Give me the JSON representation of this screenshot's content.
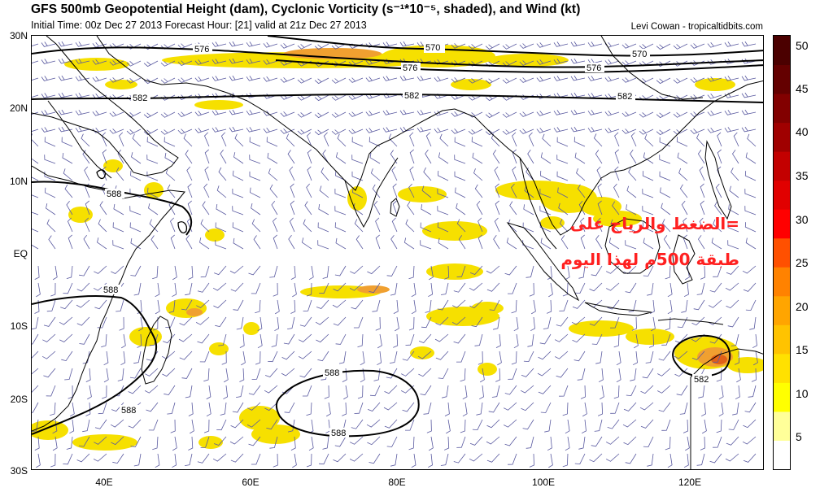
{
  "header": {
    "title": "GFS 500mb Geopotential Height (dam), Cyclonic Vorticity (s⁻¹*10⁻⁵, shaded), and Wind (kt)",
    "subtitle": "Initial Time: 00z Dec 27 2013 Forecast Hour: [21] valid at 21z Dec 27 2013",
    "credit": "Levi Cowan - tropicaltidbits.com"
  },
  "axes": {
    "lat_labels": [
      "30N",
      "20N",
      "10N",
      "EQ",
      "10S",
      "20S",
      "30S"
    ],
    "lon_labels": [
      "40E",
      "60E",
      "80E",
      "100E",
      "120E"
    ]
  },
  "contours": [
    {
      "label": "576"
    },
    {
      "label": "570"
    },
    {
      "label": "570"
    },
    {
      "label": "576"
    },
    {
      "label": "576"
    },
    {
      "label": "582"
    },
    {
      "label": "582"
    },
    {
      "label": "582"
    },
    {
      "label": "588"
    },
    {
      "label": "588"
    },
    {
      "label": "588"
    },
    {
      "label": "588"
    },
    {
      "label": "588"
    },
    {
      "label": "582"
    }
  ],
  "colorbar": {
    "labels": [
      "50",
      "45",
      "40",
      "35",
      "30",
      "25",
      "20",
      "15",
      "10",
      "5"
    ],
    "colors": [
      "#ffffff",
      "#ffff99",
      "#ffff00",
      "#ffe100",
      "#ffc300",
      "#ffa500",
      "#ff8200",
      "#ff5000",
      "#ff0000",
      "#e10000",
      "#c30000",
      "#a00000",
      "#820000",
      "#640000",
      "#4b0000"
    ]
  },
  "annotation": {
    "line1": "=الضغط والرياح على",
    "line2": "طبقة 500م لهذا اليوم",
    "color": "#ff2020"
  },
  "colors": {
    "wind_barb": "#5a5aa0",
    "land": "#000000",
    "vort_low": "#f6e000",
    "vort_mid": "#f0a030",
    "vort_high": "#e06018"
  }
}
